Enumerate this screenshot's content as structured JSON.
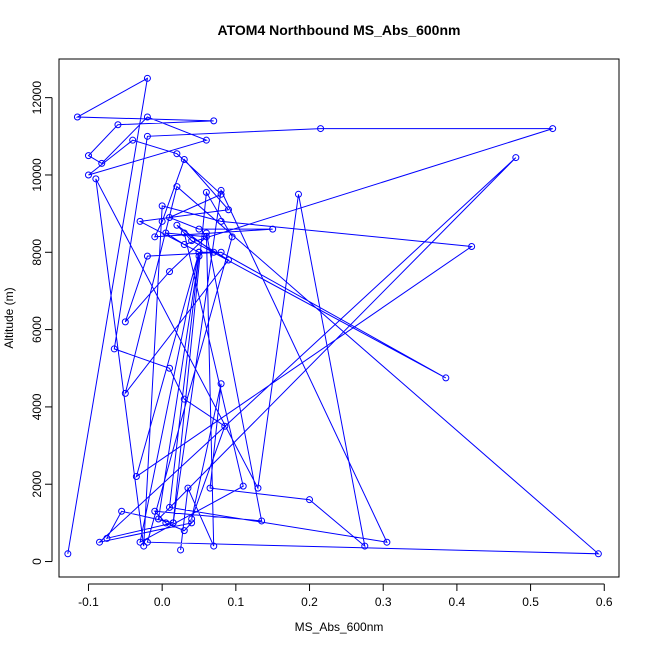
{
  "chart_data": {
    "type": "line",
    "markers": "open-circle",
    "title": "ATOM4 Northbound MS_Abs_600nm",
    "xlabel": "MS_Abs_600nm",
    "ylabel": "Altitude (m)",
    "xlim": [
      -0.14,
      0.62
    ],
    "ylim": [
      -400,
      13000
    ],
    "x_ticks": [
      -0.1,
      0.0,
      0.1,
      0.2,
      0.3,
      0.4,
      0.5,
      0.6
    ],
    "x_tick_labels": [
      "-0.1",
      "0.0",
      "0.1",
      "0.2",
      "0.3",
      "0.4",
      "0.5",
      "0.6"
    ],
    "y_ticks": [
      0,
      2000,
      4000,
      6000,
      8000,
      10000,
      12000
    ],
    "y_tick_labels": [
      "0",
      "2000",
      "4000",
      "6000",
      "8000",
      "10000",
      "12000"
    ],
    "grid": false,
    "legend": "none",
    "colors": {
      "series": "#0000ff",
      "axes": "#000000",
      "background": "#ffffff"
    },
    "series": [
      {
        "x": [
          -0.128,
          -0.02,
          -0.115,
          0.07,
          -0.06,
          -0.1,
          -0.082,
          -0.02,
          0.06,
          -0.1,
          -0.04,
          0.02,
          0.08,
          0.01,
          0.05,
          0.15,
          -0.01,
          0.0,
          0.03,
          0.09,
          -0.03,
          0.05,
          0.07,
          0.02,
          0.04,
          0.385,
          0.08,
          -0.02,
          -0.05,
          0.01,
          0.06,
          0.005,
          0.03,
          0.53,
          0.215,
          -0.02,
          -0.065,
          0.01,
          0.03,
          0.085,
          0.04,
          0.08,
          0.065,
          0.2,
          0.275,
          0.185,
          0.13,
          -0.09,
          -0.025,
          0.0,
          0.08,
          0.42,
          -0.035,
          0.05,
          -0.03,
          0.11,
          0.03,
          0.09,
          -0.05,
          0.02,
          0.592,
          -0.02,
          0.095,
          0.06,
          0.015,
          -0.075,
          -0.055,
          0.015,
          0.08,
          0.305,
          0.01,
          0.05,
          -0.005,
          0.48,
          -0.085,
          0.04,
          0.03,
          0.005,
          -0.01,
          0.135,
          0.06,
          0.07,
          0.035,
          0.025
        ],
        "y": [
          200,
          12500,
          11500,
          11400,
          11300,
          10500,
          10300,
          11500,
          10900,
          10000,
          10900,
          10550,
          9500,
          8900,
          8600,
          8600,
          8400,
          8800,
          10400,
          9100,
          8800,
          8000,
          8000,
          8700,
          8300,
          4750,
          8000,
          7900,
          6200,
          7500,
          8400,
          8500,
          8200,
          11200,
          11200,
          11000,
          5500,
          5000,
          4200,
          3500,
          1100,
          4600,
          1900,
          1600,
          400,
          9500,
          1900,
          9900,
          400,
          9200,
          8800,
          8150,
          2200,
          8000,
          500,
          1950,
          8500,
          7800,
          4350,
          9700,
          200,
          500,
          8400,
          9550,
          1000,
          600,
          1300,
          1000,
          9600,
          500,
          1400,
          7900,
          1100,
          10450,
          500,
          1000,
          800,
          1000,
          1300,
          1050,
          8500,
          400,
          1900,
          300
        ]
      }
    ]
  }
}
